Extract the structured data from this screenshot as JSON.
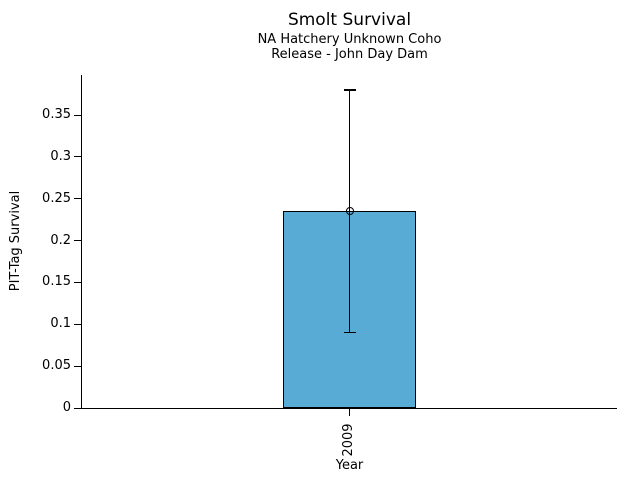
{
  "chart_data": {
    "type": "bar",
    "title": "Smolt Survival",
    "subtitle1": "NA Hatchery Unknown Coho",
    "subtitle2": "Release - John Day Dam",
    "xlabel": "Year",
    "ylabel": "PIT-Tag Survival",
    "categories": [
      "2009"
    ],
    "values": [
      0.235
    ],
    "error_low": [
      0.09
    ],
    "error_high": [
      0.38
    ],
    "marker": "open-circle",
    "yticks": [
      0,
      0.05,
      0.1,
      0.15,
      0.2,
      0.25,
      0.3,
      0.35
    ],
    "ytick_labels": [
      "0",
      "0.05",
      "0.1",
      "0.15",
      "0.2",
      "0.25",
      "0.3",
      "0.35"
    ],
    "ylim": [
      0,
      0.398
    ],
    "grid": false,
    "legend": null,
    "bar_color": "#58ABD4",
    "bar_edge_color": "#000000",
    "text_color": "#000000",
    "background_color": "#ffffff"
  }
}
